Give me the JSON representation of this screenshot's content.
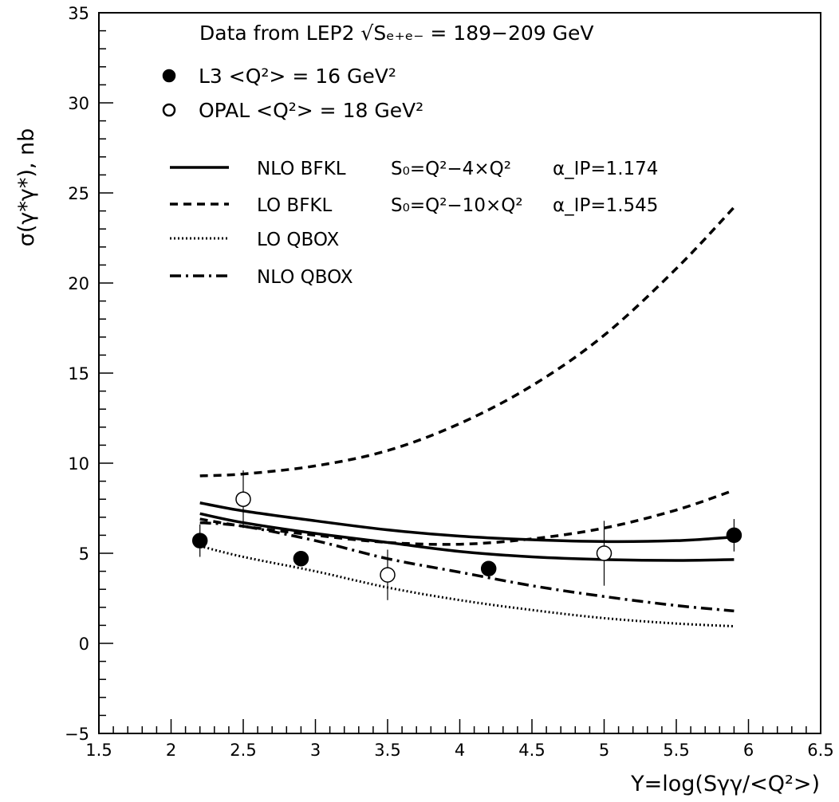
{
  "chart_data": {
    "type": "scatter",
    "title": "Data from LEP2  √Sₑ₊ₑ₋ = 189−209 GeV",
    "xlabel": "Y=log(Sγγ/<Q²>)",
    "ylabel": "σ(γ*γ*), nb",
    "xlim": [
      1.5,
      6.5
    ],
    "ylim": [
      -5,
      35
    ],
    "x_ticks": [
      1.5,
      2,
      2.5,
      3,
      3.5,
      4,
      4.5,
      5,
      5.5,
      6,
      6.5
    ],
    "x_tick_labels": [
      "1.5",
      "2",
      "2.5",
      "3",
      "3.5",
      "4",
      "4.5",
      "5",
      "5.5",
      "6",
      "6.5"
    ],
    "y_ticks": [
      -5,
      0,
      5,
      10,
      15,
      20,
      25,
      30,
      35
    ],
    "y_tick_labels": [
      "−5",
      "0",
      "5",
      "10",
      "15",
      "20",
      "25",
      "30",
      "35"
    ],
    "grid": false,
    "legend_placement": "top-left",
    "data_legend": [
      {
        "marker": "filled-circle",
        "label": "L3     <Q²> = 16 GeV²"
      },
      {
        "marker": "open-circle",
        "label": "OPAL <Q²> = 18 GeV²"
      }
    ],
    "curve_legend": [
      {
        "style": "solid",
        "label": "NLO BFKL",
        "param1": "S₀=Q²−4×Q²",
        "param2": "α_IP=1.174"
      },
      {
        "style": "dashed",
        "label": "LO BFKL",
        "param1": "S₀=Q²−10×Q²",
        "param2": "α_IP=1.545"
      },
      {
        "style": "dotted",
        "label": "LO QBOX",
        "param1": "",
        "param2": ""
      },
      {
        "style": "dashdot",
        "label": "NLO QBOX",
        "param1": "",
        "param2": ""
      }
    ],
    "points": [
      {
        "name": "L3",
        "filled": true,
        "x": [
          2.2,
          2.9,
          4.2,
          5.9
        ],
        "y": [
          5.7,
          4.7,
          4.15,
          6.0
        ],
        "err": [
          0.9,
          0.4,
          0.4,
          0.9
        ]
      },
      {
        "name": "OPAL",
        "filled": false,
        "x": [
          2.5,
          3.5,
          5.0
        ],
        "y": [
          8.0,
          3.8,
          5.0
        ],
        "err": [
          1.6,
          1.4,
          1.8
        ]
      }
    ],
    "series": [
      {
        "name": "NLO BFKL upper",
        "style": "solid",
        "x": [
          2.2,
          2.5,
          3.0,
          3.5,
          4.0,
          4.5,
          5.0,
          5.5,
          5.9
        ],
        "y": [
          7.8,
          7.35,
          6.8,
          6.3,
          5.95,
          5.75,
          5.65,
          5.7,
          5.9
        ]
      },
      {
        "name": "NLO BFKL lower",
        "style": "solid",
        "x": [
          2.2,
          2.5,
          3.0,
          3.5,
          4.0,
          4.5,
          5.0,
          5.5,
          5.9
        ],
        "y": [
          7.2,
          6.7,
          6.1,
          5.6,
          5.1,
          4.8,
          4.65,
          4.6,
          4.65
        ]
      },
      {
        "name": "LO BFKL upper",
        "style": "dashed",
        "x": [
          2.2,
          2.5,
          3.0,
          3.5,
          4.0,
          4.5,
          5.0,
          5.5,
          5.9
        ],
        "y": [
          9.3,
          9.4,
          9.85,
          10.7,
          12.2,
          14.3,
          17.1,
          20.8,
          24.2
        ]
      },
      {
        "name": "LO BFKL lower",
        "style": "dashed",
        "x": [
          2.2,
          2.5,
          3.0,
          3.5,
          4.0,
          4.5,
          5.0,
          5.5,
          5.9
        ],
        "y": [
          6.9,
          6.5,
          6.0,
          5.6,
          5.5,
          5.8,
          6.4,
          7.4,
          8.5
        ]
      },
      {
        "name": "LO QBOX",
        "style": "dotted",
        "x": [
          2.2,
          2.5,
          3.0,
          3.5,
          4.0,
          4.5,
          5.0,
          5.5,
          5.9
        ],
        "y": [
          5.4,
          4.8,
          4.0,
          3.1,
          2.4,
          1.85,
          1.4,
          1.1,
          0.95
        ]
      },
      {
        "name": "NLO QBOX",
        "style": "dashdot",
        "x": [
          2.2,
          2.5,
          3.0,
          3.5,
          4.0,
          4.5,
          5.0,
          5.5,
          5.9
        ],
        "y": [
          6.7,
          6.5,
          5.7,
          4.7,
          3.95,
          3.2,
          2.6,
          2.1,
          1.8
        ]
      }
    ]
  }
}
